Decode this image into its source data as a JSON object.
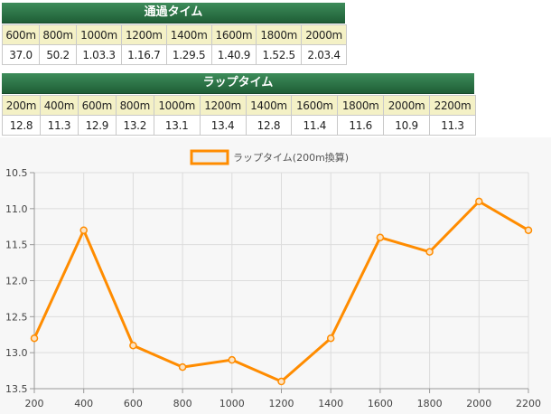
{
  "passing_time": {
    "title": "通過タイム",
    "headers": [
      "600m",
      "800m",
      "1000m",
      "1200m",
      "1400m",
      "1600m",
      "1800m",
      "2000m"
    ],
    "values": [
      "37.0",
      "50.2",
      "1.03.3",
      "1.16.7",
      "1.29.5",
      "1.40.9",
      "1.52.5",
      "2.03.4"
    ]
  },
  "lap_time": {
    "title": "ラップタイム",
    "headers": [
      "200m",
      "400m",
      "600m",
      "800m",
      "1000m",
      "1200m",
      "1400m",
      "1600m",
      "1800m",
      "2000m",
      "2200m"
    ],
    "values": [
      "12.8",
      "11.3",
      "12.9",
      "13.2",
      "13.1",
      "13.4",
      "12.8",
      "11.4",
      "11.6",
      "10.9",
      "11.3"
    ]
  },
  "chart_data": {
    "type": "line",
    "x": [
      200,
      400,
      600,
      800,
      1000,
      1200,
      1400,
      1600,
      1800,
      2000,
      2200
    ],
    "x_tick_labels": [
      "200",
      "400",
      "600",
      "800",
      "1000",
      "1200",
      "1400",
      "1600",
      "1800",
      "2000",
      "2200"
    ],
    "series": [
      {
        "name": "ラップタイム(200m換算)",
        "values": [
          12.8,
          11.3,
          12.9,
          13.2,
          13.1,
          13.4,
          12.8,
          11.4,
          11.6,
          10.9,
          11.3
        ],
        "color": "#ff8c00"
      }
    ],
    "y_tick_labels": [
      "10.5",
      "11.0",
      "11.5",
      "12.0",
      "12.5",
      "13.0",
      "13.5"
    ],
    "ylim": [
      10.5,
      13.5
    ],
    "y_reversed": true,
    "grid": true,
    "legend_position": "top-center"
  }
}
